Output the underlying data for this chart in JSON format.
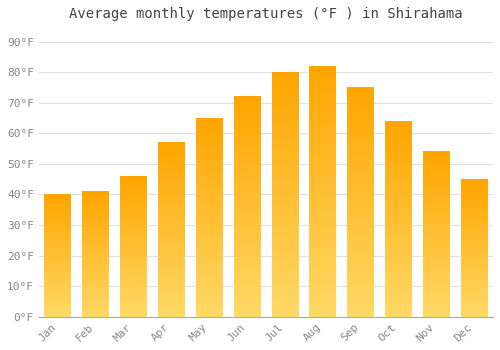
{
  "title": "Average monthly temperatures (°F ) in Shirahama",
  "months": [
    "Jan",
    "Feb",
    "Mar",
    "Apr",
    "May",
    "Jun",
    "Jul",
    "Aug",
    "Sep",
    "Oct",
    "Nov",
    "Dec"
  ],
  "values": [
    40,
    41,
    46,
    57,
    65,
    72,
    80,
    82,
    75,
    64,
    54,
    45
  ],
  "bar_color_top": "#FFA500",
  "bar_color_bottom": "#FFD966",
  "yticks": [
    0,
    10,
    20,
    30,
    40,
    50,
    60,
    70,
    80,
    90
  ],
  "ytick_labels": [
    "0°F",
    "10°F",
    "20°F",
    "30°F",
    "40°F",
    "50°F",
    "60°F",
    "70°F",
    "80°F",
    "90°F"
  ],
  "ylim": [
    0,
    95
  ],
  "background_color": "#ffffff",
  "grid_color": "#e0e0e0",
  "title_fontsize": 10,
  "tick_fontsize": 8,
  "bar_width": 0.7
}
